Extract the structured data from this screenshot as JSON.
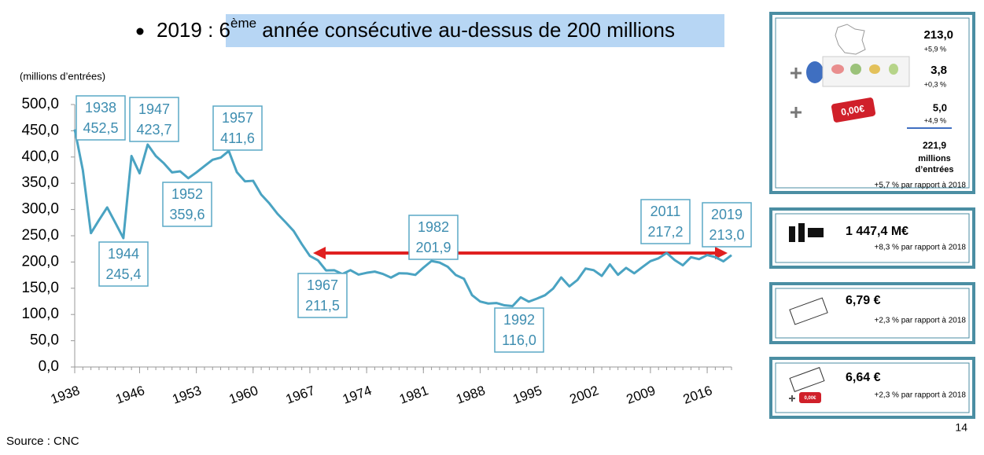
{
  "headline": {
    "prefix": "2019 : ",
    "highlight": "6",
    "superscript": "ème",
    "suffix": " année consécutive au-dessus de 200 millions"
  },
  "chart_data": {
    "type": "line",
    "ylabel": "(millions d’entrées)",
    "color": "#4aa3c2",
    "x": [
      1938,
      1939,
      1940,
      1941,
      1942,
      1943,
      1944,
      1945,
      1946,
      1947,
      1948,
      1949,
      1950,
      1951,
      1952,
      1953,
      1954,
      1955,
      1956,
      1957,
      1958,
      1959,
      1960,
      1961,
      1962,
      1963,
      1964,
      1965,
      1966,
      1967,
      1968,
      1969,
      1970,
      1971,
      1972,
      1973,
      1974,
      1975,
      1976,
      1977,
      1978,
      1979,
      1980,
      1981,
      1982,
      1983,
      1984,
      1985,
      1986,
      1987,
      1988,
      1989,
      1990,
      1991,
      1992,
      1993,
      1994,
      1995,
      1996,
      1997,
      1998,
      1999,
      2000,
      2001,
      2002,
      2003,
      2004,
      2005,
      2006,
      2007,
      2008,
      2009,
      2010,
      2011,
      2012,
      2013,
      2014,
      2015,
      2016,
      2017,
      2018,
      2019
    ],
    "values": [
      452.5,
      375,
      255,
      280,
      304,
      275,
      245.4,
      402,
      369,
      423.7,
      402,
      388,
      370.7,
      372.8,
      359.6,
      370.6,
      382.8,
      394.8,
      398.8,
      411.6,
      371,
      353.7,
      354.7,
      328.4,
      311.7,
      291.9,
      275.8,
      259.1,
      234.2,
      211.5,
      203.2,
      183.9,
      184.4,
      177,
      184.4,
      176,
      179.4,
      181.7,
      177.3,
      170.3,
      178.5,
      178.1,
      175.4,
      189.2,
      201.9,
      198.9,
      190.9,
      175.1,
      168.1,
      136.9,
      124.7,
      120.9,
      121.9,
      117.5,
      116,
      132.7,
      124.4,
      130.2,
      136.7,
      149.3,
      170.6,
      153.6,
      165.8,
      187.5,
      184.4,
      173.5,
      195.4,
      175.6,
      188.8,
      178.5,
      190.3,
      201.6,
      207.1,
      217.2,
      203.6,
      193.7,
      209.1,
      205.4,
      213.2,
      209.4,
      201.2,
      213
    ],
    "xlim": [
      1938,
      2019
    ],
    "ylim": [
      0,
      500
    ],
    "xticks": [
      1938,
      1946,
      1953,
      1960,
      1967,
      1974,
      1981,
      1988,
      1995,
      2002,
      2009,
      2016
    ],
    "yticks": [
      {
        "value": 0,
        "label": "0,0"
      },
      {
        "value": 50,
        "label": "50,0"
      },
      {
        "value": 100,
        "label": "100,0"
      },
      {
        "value": 150,
        "label": "150,0"
      },
      {
        "value": 200,
        "label": "200,0"
      },
      {
        "value": 250,
        "label": "250,0"
      },
      {
        "value": 300,
        "label": "300,0"
      },
      {
        "value": 350,
        "label": "350,0"
      },
      {
        "value": 400,
        "label": "400,0"
      },
      {
        "value": 450,
        "label": "450,0"
      },
      {
        "value": 500,
        "label": "500,0"
      }
    ],
    "annotations": [
      {
        "x": 1938,
        "value": 452.5,
        "label": "452,5"
      },
      {
        "x": 1944,
        "value": 245.4,
        "label": "245,4"
      },
      {
        "x": 1947,
        "value": 423.7,
        "label": "423,7"
      },
      {
        "x": 1952,
        "value": 359.6,
        "label": "359,6"
      },
      {
        "x": 1957,
        "value": 411.6,
        "label": "411,6"
      },
      {
        "x": 1967,
        "value": 211.5,
        "label": "211,5"
      },
      {
        "x": 1982,
        "value": 201.9,
        "label": "201,9"
      },
      {
        "x": 1992,
        "value": 116,
        "label": "116,0"
      },
      {
        "x": 2011,
        "value": 217.2,
        "label": "217,2"
      },
      {
        "x": 2019,
        "value": 213,
        "label": "213,0"
      }
    ]
  },
  "source": "Source : CNC",
  "page_number": "14",
  "panels": {
    "admissions": {
      "france": "213,0",
      "france_change": "+5,9 %",
      "overseas": "3,8",
      "overseas_change": "+0,3 %",
      "badge": "0,00€",
      "free": "5,0",
      "free_change": "+4,9 %",
      "total": "221,9",
      "total_unit_1": "millions",
      "total_unit_2": "d’entrées",
      "total_change": "+5,7 % par rapport à 2018"
    },
    "revenue": {
      "value": "1 447,4 M€",
      "change": "+8,3 % par rapport à 2018"
    },
    "ticket": {
      "value": "6,79 €",
      "change": "+2,3 % par rapport à 2018"
    },
    "ticket_paid": {
      "value": "6,64 €",
      "change": "+2,3 % par rapport à 2018",
      "badge": "0,00€"
    }
  }
}
